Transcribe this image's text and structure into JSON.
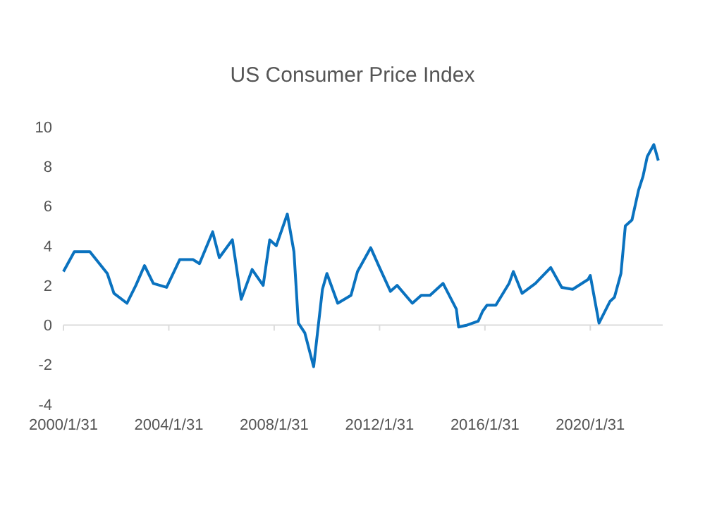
{
  "chart_data": {
    "type": "line",
    "title": "US Consumer Price Index",
    "color": "#0a72bf",
    "x": [
      "2000-01-31",
      "2000-06-30",
      "2001-01-31",
      "2001-09-30",
      "2001-12-31",
      "2002-06-30",
      "2002-10-31",
      "2003-02-28",
      "2003-06-30",
      "2003-12-31",
      "2004-06-30",
      "2004-12-31",
      "2005-03-31",
      "2005-09-30",
      "2005-12-31",
      "2006-06-30",
      "2006-10-31",
      "2007-03-31",
      "2007-08-31",
      "2007-11-30",
      "2008-02-29",
      "2008-07-31",
      "2008-10-31",
      "2008-12-31",
      "2009-03-31",
      "2009-07-31",
      "2009-11-30",
      "2010-01-31",
      "2010-06-30",
      "2010-12-31",
      "2011-03-31",
      "2011-09-30",
      "2012-01-31",
      "2012-06-30",
      "2012-09-30",
      "2013-04-30",
      "2013-08-31",
      "2013-12-31",
      "2014-06-30",
      "2014-12-31",
      "2015-01-31",
      "2015-05-31",
      "2015-10-31",
      "2015-12-31",
      "2016-02-29",
      "2016-06-30",
      "2016-12-31",
      "2017-02-28",
      "2017-06-30",
      "2017-12-31",
      "2018-07-31",
      "2018-12-31",
      "2019-05-31",
      "2019-12-31",
      "2020-01-31",
      "2020-05-31",
      "2020-10-31",
      "2020-12-31",
      "2021-03-31",
      "2021-05-31",
      "2021-08-31",
      "2021-11-30",
      "2022-01-31",
      "2022-03-31",
      "2022-06-30",
      "2022-08-31"
    ],
    "values": [
      2.7,
      3.7,
      3.7,
      2.6,
      1.6,
      1.1,
      2.0,
      3.0,
      2.1,
      1.9,
      3.3,
      3.3,
      3.1,
      4.7,
      3.4,
      4.3,
      1.3,
      2.8,
      2.0,
      4.3,
      4.0,
      5.6,
      3.7,
      0.1,
      -0.4,
      -2.1,
      1.8,
      2.6,
      1.1,
      1.5,
      2.7,
      3.9,
      2.9,
      1.7,
      2.0,
      1.1,
      1.5,
      1.5,
      2.1,
      0.8,
      -0.1,
      0.0,
      0.2,
      0.7,
      1.0,
      1.0,
      2.1,
      2.7,
      1.6,
      2.1,
      2.9,
      1.9,
      1.8,
      2.3,
      2.5,
      0.1,
      1.2,
      1.4,
      2.6,
      5.0,
      5.3,
      6.8,
      7.5,
      8.5,
      9.1,
      8.3
    ],
    "xlim": [
      "2000-01-31",
      "2022-10-31"
    ],
    "xticks": [
      {
        "value": "2000-01-31",
        "label": "2000/1/31"
      },
      {
        "value": "2004-01-31",
        "label": "2004/1/31"
      },
      {
        "value": "2008-01-31",
        "label": "2008/1/31"
      },
      {
        "value": "2012-01-31",
        "label": "2012/1/31"
      },
      {
        "value": "2016-01-31",
        "label": "2016/1/31"
      },
      {
        "value": "2020-01-31",
        "label": "2020/1/31"
      }
    ],
    "ylim": [
      -4,
      10
    ],
    "yticks": [
      -4,
      -2,
      0,
      2,
      4,
      6,
      8,
      10
    ]
  }
}
